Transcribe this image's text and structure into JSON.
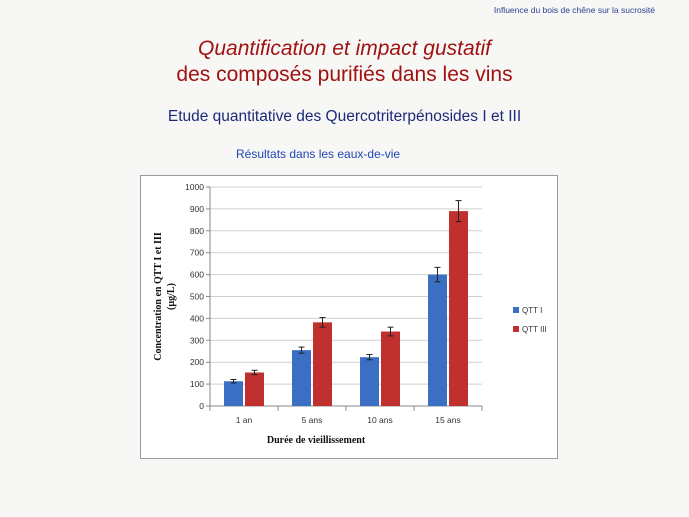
{
  "slide": {
    "header_note": "Influence du bois de chêne sur la sucrosité",
    "title_line1": "Quantification et impact gustatif",
    "title_line2": "des composés purifiés dans les vins",
    "subtitle": "Etude quantitative des Quercotriterpénosides I et III",
    "results_label": "Résultats dans les eaux-de-vie"
  },
  "colors": {
    "qtt1": "#3a6fc4",
    "qtt3": "#c0302e",
    "title": "#a01212",
    "subtitle": "#1c2a78"
  },
  "chart_data": {
    "type": "bar",
    "categories": [
      "1 an",
      "5 ans",
      "10 ans",
      "15 ans"
    ],
    "series": [
      {
        "name": "QTT I",
        "values": [
          113,
          255,
          223,
          600
        ],
        "errors": [
          8,
          14,
          12,
          33
        ]
      },
      {
        "name": "QTT III",
        "values": [
          153,
          382,
          340,
          890
        ],
        "errors": [
          10,
          22,
          20,
          48
        ]
      }
    ],
    "xlabel": "Durée de vieillissement",
    "ylabel_line1": "Concentration en QTT I et III",
    "ylabel_line2": "(µg/L)",
    "ylim": [
      0,
      1000
    ],
    "yticks": [
      0,
      100,
      200,
      300,
      400,
      500,
      600,
      700,
      800,
      900,
      1000
    ],
    "grid": true,
    "legend_position": "right"
  }
}
